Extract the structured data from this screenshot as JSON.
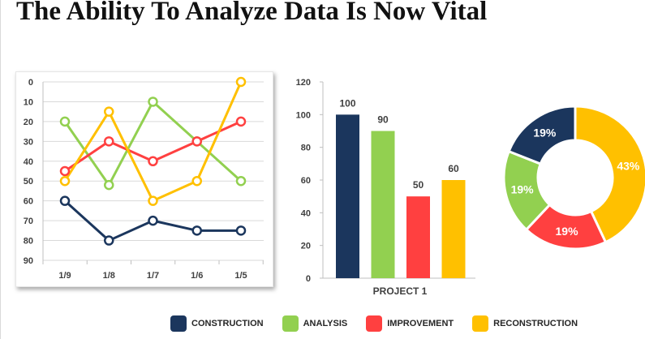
{
  "title": "The Ability To Analyze Data Is Now Vital",
  "colors": {
    "construction": "#1b365d",
    "analysis": "#92d050",
    "improvement": "#ff4040",
    "reconstruction": "#ffc000"
  },
  "legend": [
    {
      "label": "CONSTRUCTION",
      "color": "#1b365d"
    },
    {
      "label": "ANALYSIS",
      "color": "#92d050"
    },
    {
      "label": "IMPROVEMENT",
      "color": "#ff4040"
    },
    {
      "label": "RECONSTRUCTION",
      "color": "#ffc000"
    }
  ],
  "chart_data": [
    {
      "type": "line",
      "categories": [
        "1/9",
        "1/8",
        "1/7",
        "1/6",
        "1/5"
      ],
      "yticks": [
        "0",
        "10",
        "20",
        "30",
        "40",
        "50",
        "60",
        "70",
        "80",
        "90"
      ],
      "ylim": [
        0,
        90
      ],
      "y_inverted": true,
      "grid": true,
      "series": [
        {
          "name": "CONSTRUCTION",
          "color": "#1b365d",
          "values": [
            60,
            80,
            70,
            75,
            75
          ]
        },
        {
          "name": "ANALYSIS",
          "color": "#92d050",
          "values": [
            20,
            52,
            10,
            30,
            50
          ]
        },
        {
          "name": "IMPROVEMENT",
          "color": "#ff4040",
          "values": [
            45,
            30,
            40,
            30,
            20
          ]
        },
        {
          "name": "RECONSTRUCTION",
          "color": "#ffc000",
          "values": [
            50,
            15,
            60,
            50,
            0
          ]
        }
      ]
    },
    {
      "type": "bar",
      "categories": [
        "PROJECT 1"
      ],
      "xlabel": "PROJECT 1",
      "ylim": [
        0,
        120
      ],
      "yticks": [
        "0",
        "20",
        "40",
        "60",
        "80",
        "100",
        "120"
      ],
      "series": [
        {
          "name": "CONSTRUCTION",
          "color": "#1b365d",
          "values": [
            100
          ],
          "label": "100"
        },
        {
          "name": "ANALYSIS",
          "color": "#92d050",
          "values": [
            90
          ],
          "label": "90"
        },
        {
          "name": "IMPROVEMENT",
          "color": "#ff4040",
          "values": [
            50
          ],
          "label": "50"
        },
        {
          "name": "RECONSTRUCTION",
          "color": "#ffc000",
          "values": [
            60
          ],
          "label": "60"
        }
      ]
    },
    {
      "type": "pie",
      "donut": true,
      "slices": [
        {
          "name": "RECONSTRUCTION",
          "value": 43,
          "label": "43%",
          "color": "#ffc000"
        },
        {
          "name": "IMPROVEMENT",
          "value": 19,
          "label": "19%",
          "color": "#ff4040"
        },
        {
          "name": "ANALYSIS",
          "value": 19,
          "label": "19%",
          "color": "#92d050"
        },
        {
          "name": "CONSTRUCTION",
          "value": 19,
          "label": "19%",
          "color": "#1b365d"
        }
      ]
    }
  ]
}
